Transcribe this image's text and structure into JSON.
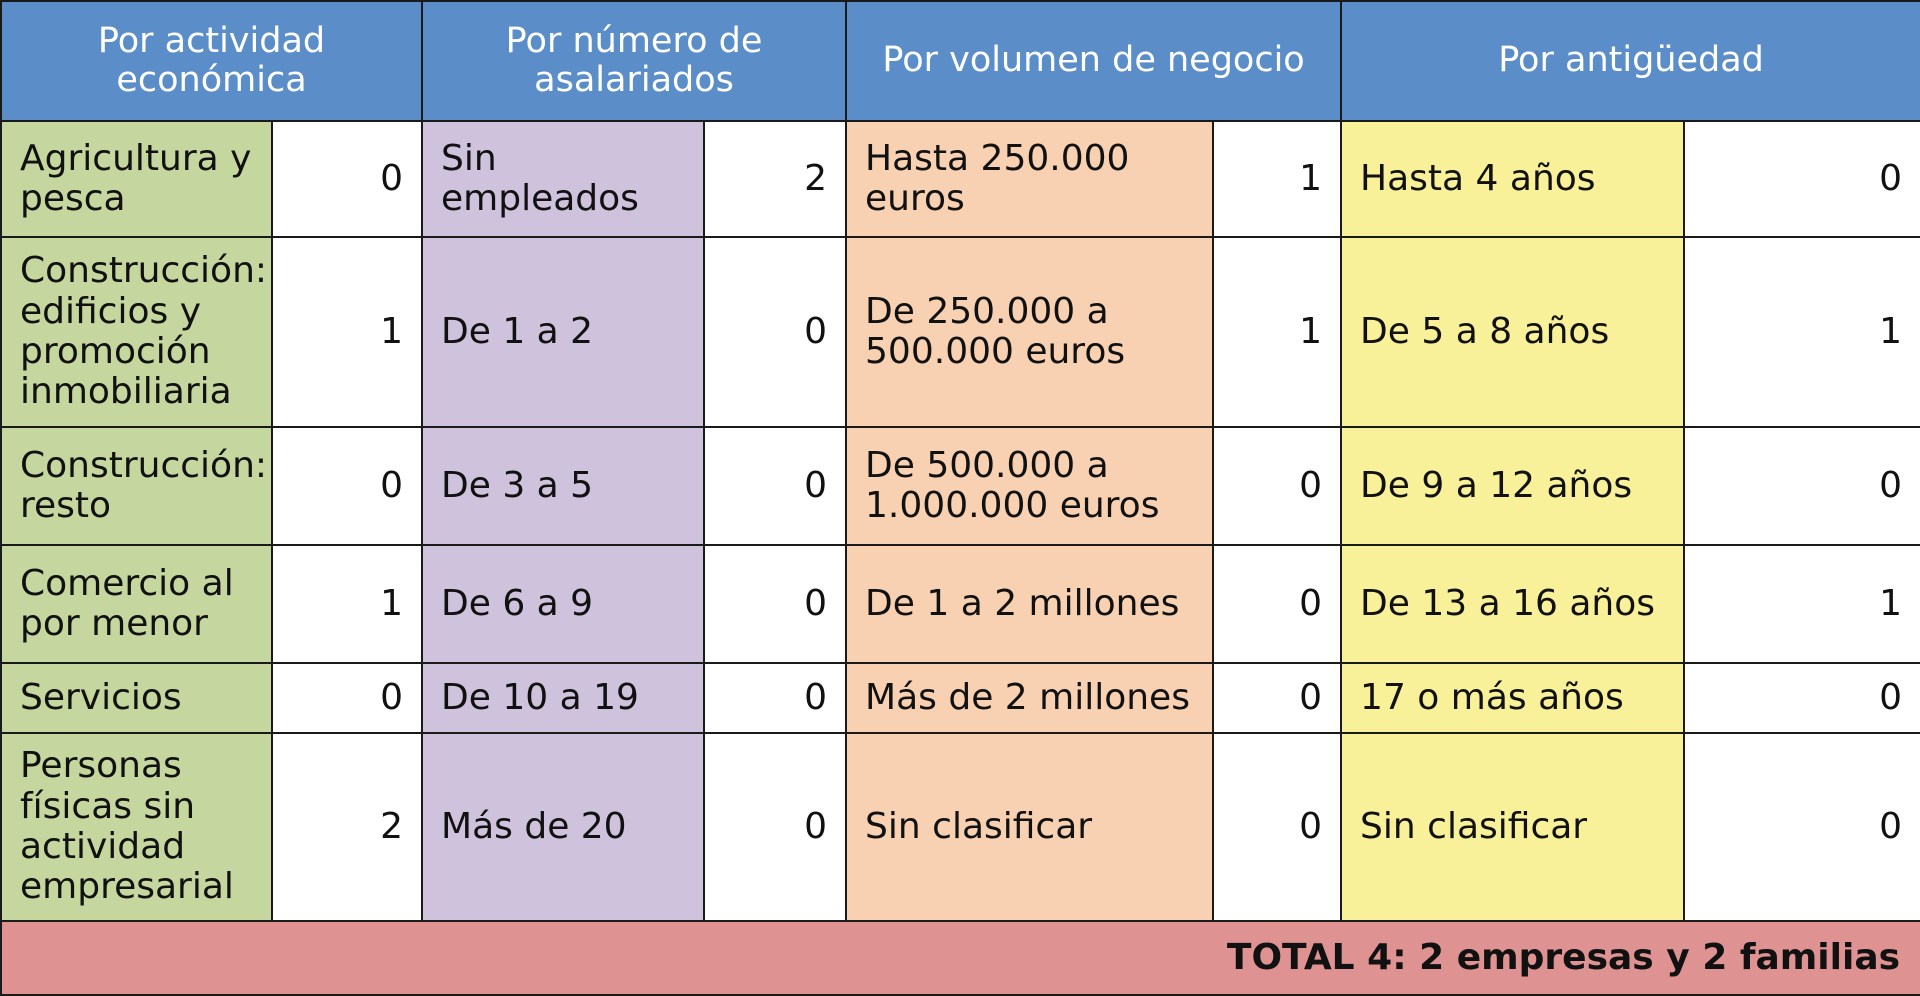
{
  "headers": {
    "actividad": "Por actividad económica",
    "asalariados": "Por número de asalariados",
    "volumen": "Por volumen de negocio",
    "antiguedad": "Por antigüedad"
  },
  "rows": [
    {
      "actividad": {
        "label": "Agricultura y pesca",
        "value": "0"
      },
      "asalariados": {
        "label": "Sin empleados",
        "value": "2"
      },
      "volumen": {
        "label": "Hasta 250.000 euros",
        "value": "1"
      },
      "antiguedad": {
        "label": "Hasta 4 años",
        "value": "0"
      }
    },
    {
      "actividad": {
        "label": "Construcción: edificios y promoción inmobiliaria",
        "value": "1"
      },
      "asalariados": {
        "label": "De 1 a 2",
        "value": "0"
      },
      "volumen": {
        "label": "De 250.000 a 500.000 euros",
        "value": "1"
      },
      "antiguedad": {
        "label": "De 5 a 8 años",
        "value": "1"
      }
    },
    {
      "actividad": {
        "label": "Construcción: resto",
        "value": "0"
      },
      "asalariados": {
        "label": "De 3 a 5",
        "value": "0"
      },
      "volumen": {
        "label": "De 500.000 a 1.000.000 euros",
        "value": "0"
      },
      "antiguedad": {
        "label": "De 9 a 12 años",
        "value": "0"
      }
    },
    {
      "actividad": {
        "label": "Comercio al por menor",
        "value": "1"
      },
      "asalariados": {
        "label": "De 6 a 9",
        "value": "0"
      },
      "volumen": {
        "label": "De 1 a 2 millones",
        "value": "0"
      },
      "antiguedad": {
        "label": "De 13 a 16 años",
        "value": "1"
      }
    },
    {
      "actividad": {
        "label": "Servicios",
        "value": "0"
      },
      "asalariados": {
        "label": "De 10 a 19",
        "value": "0"
      },
      "volumen": {
        "label": "Más de 2 millones",
        "value": "0"
      },
      "antiguedad": {
        "label": "17 o más años",
        "value": "0"
      }
    },
    {
      "actividad": {
        "label": "Personas físicas sin actividad empresarial",
        "value": "2"
      },
      "asalariados": {
        "label": "Más de 20",
        "value": "0"
      },
      "volumen": {
        "label": "Sin clasificar",
        "value": "0"
      },
      "antiguedad": {
        "label": "Sin clasificar",
        "value": "0"
      }
    }
  ],
  "total": "TOTAL 4: 2 empresas y 2 familias",
  "colors": {
    "header": "#5b8ec9",
    "actividad": "#c5d79f",
    "asalariados": "#cfc2dc",
    "volumen": "#f8d1b2",
    "antiguedad": "#f8f19a",
    "total": "#de9291"
  }
}
